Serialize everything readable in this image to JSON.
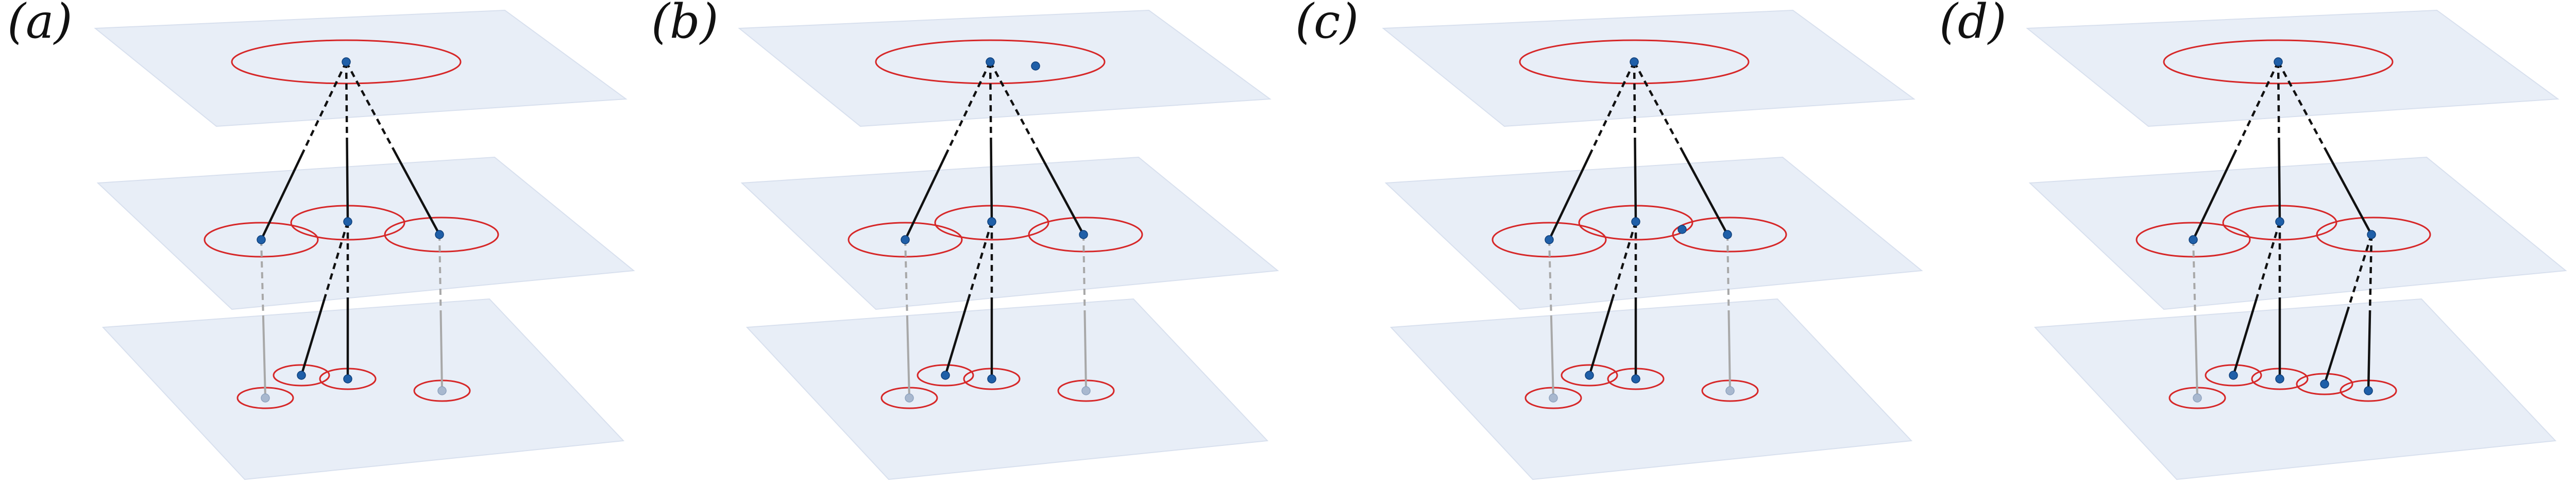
{
  "colors": {
    "layer_fill": "#e8eef7",
    "layer_stroke": "#d8e0ee",
    "ring": "#d62728",
    "node": "#1f5fa8",
    "node_faded": "#a8b8cf",
    "edge": "#111111",
    "edge_faded": "#a8a8a8"
  },
  "panels": [
    {
      "label": "(a)",
      "extra_node": "none",
      "right_branch_children": "none"
    },
    {
      "label": "(b)",
      "extra_node": "top-layer",
      "right_branch_children": "none"
    },
    {
      "label": "(c)",
      "extra_node": "middle-layer",
      "right_branch_children": "none"
    },
    {
      "label": "(d)",
      "extra_node": "none",
      "right_branch_children": "two"
    }
  ]
}
